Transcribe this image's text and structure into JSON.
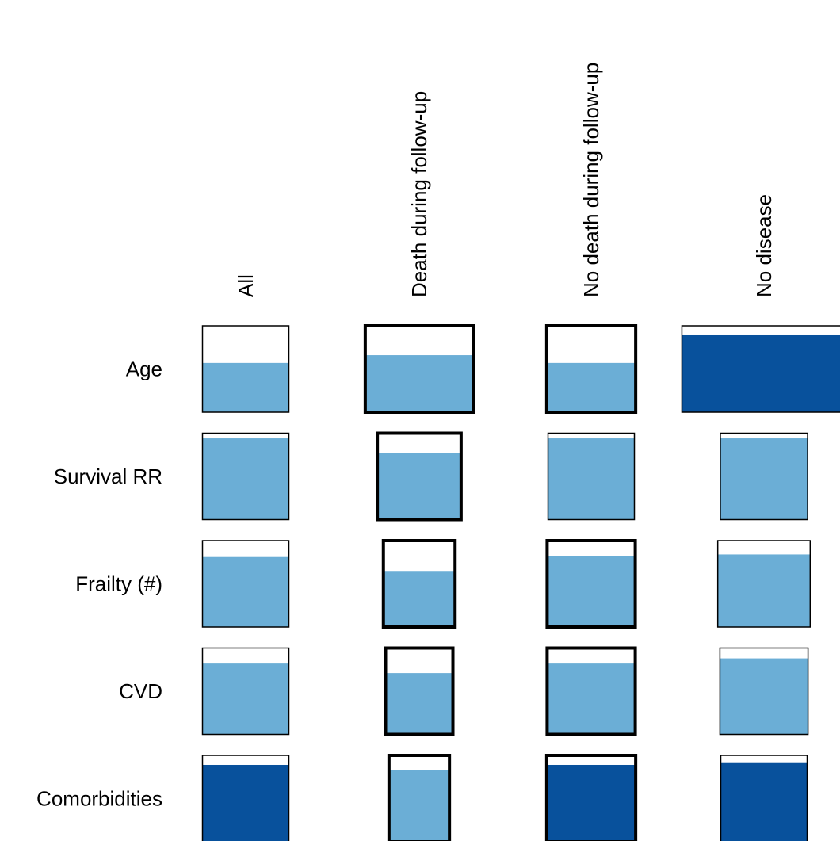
{
  "chart_data": {
    "type": "glyph-grid",
    "columns": [
      "All",
      "Death during follow-up",
      "No death during follow-up",
      "No disease"
    ],
    "rows": [
      "Age",
      "Survival RR",
      "Frailty (#)",
      "CVD",
      "Comorbidities"
    ],
    "cells": [
      [
        {
          "fill": 0.57,
          "width": 1.0,
          "thick": false,
          "color": "#6baed6"
        },
        {
          "fill": 0.66,
          "width": 1.25,
          "thick": true,
          "color": "#6baed6"
        },
        {
          "fill": 0.57,
          "width": 1.03,
          "thick": true,
          "color": "#6baed6"
        },
        {
          "fill": 0.89,
          "width": 1.9,
          "thick": false,
          "color": "#08519c"
        }
      ],
      [
        {
          "fill": 0.94,
          "width": 1.0,
          "thick": false,
          "color": "#6baed6"
        },
        {
          "fill": 0.77,
          "width": 0.97,
          "thick": true,
          "color": "#6baed6"
        },
        {
          "fill": 0.94,
          "width": 1.0,
          "thick": false,
          "color": "#6baed6"
        },
        {
          "fill": 0.94,
          "width": 1.01,
          "thick": false,
          "color": "#6baed6"
        }
      ],
      [
        {
          "fill": 0.81,
          "width": 1.0,
          "thick": false,
          "color": "#6baed6"
        },
        {
          "fill": 0.64,
          "width": 0.83,
          "thick": true,
          "color": "#6baed6"
        },
        {
          "fill": 0.82,
          "width": 1.02,
          "thick": true,
          "color": "#6baed6"
        },
        {
          "fill": 0.84,
          "width": 1.07,
          "thick": false,
          "color": "#6baed6"
        }
      ],
      [
        {
          "fill": 0.82,
          "width": 1.0,
          "thick": false,
          "color": "#6baed6"
        },
        {
          "fill": 0.71,
          "width": 0.78,
          "thick": true,
          "color": "#6baed6"
        },
        {
          "fill": 0.82,
          "width": 1.02,
          "thick": true,
          "color": "#6baed6"
        },
        {
          "fill": 0.88,
          "width": 1.02,
          "thick": false,
          "color": "#6baed6"
        }
      ],
      [
        {
          "fill": 0.89,
          "width": 1.0,
          "thick": false,
          "color": "#08519c"
        },
        {
          "fill": 0.83,
          "width": 0.7,
          "thick": true,
          "color": "#6baed6"
        },
        {
          "fill": 0.89,
          "width": 1.03,
          "thick": true,
          "color": "#08519c"
        },
        {
          "fill": 0.92,
          "width": 1.0,
          "thick": false,
          "color": "#08519c"
        }
      ]
    ]
  }
}
